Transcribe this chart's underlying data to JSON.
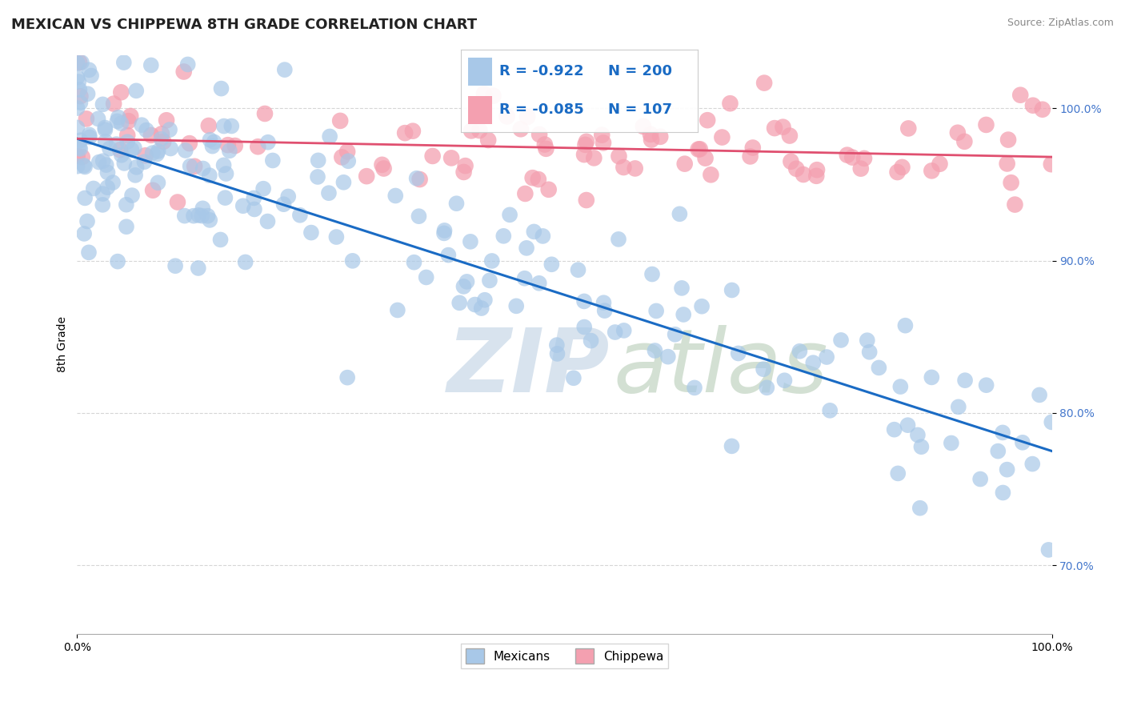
{
  "title": "MEXICAN VS CHIPPEWA 8TH GRADE CORRELATION CHART",
  "source_text": "Source: ZipAtlas.com",
  "ylabel": "8th Grade",
  "xlim": [
    0.0,
    1.0
  ],
  "ylim": [
    0.655,
    1.035
  ],
  "yticks": [
    0.7,
    0.8,
    0.9,
    1.0
  ],
  "ytick_labels": [
    "70.0%",
    "80.0%",
    "90.0%",
    "100.0%"
  ],
  "xticks": [
    0.0,
    1.0
  ],
  "xtick_labels": [
    "0.0%",
    "100.0%"
  ],
  "legend_r_mexican": "R = -0.922",
  "legend_n_mexican": "N = 200",
  "legend_r_chippewa": "R = -0.085",
  "legend_n_chippewa": "N = 107",
  "mexican_color": "#a8c8e8",
  "chippewa_color": "#f4a0b0",
  "trend_mexican_color": "#1a6bc4",
  "trend_chippewa_color": "#e05070",
  "watermark_zip": "ZIP",
  "watermark_atlas": "atlas",
  "watermark_color_zip": "#c8d8e8",
  "watermark_color_atlas": "#b0c8b0",
  "background_color": "#ffffff",
  "title_fontsize": 13,
  "axis_label_fontsize": 10,
  "tick_fontsize": 10,
  "legend_fontsize": 13,
  "grid_color": "#cccccc",
  "grid_style": "--",
  "grid_alpha": 0.8,
  "seed": 42,
  "mexican_trend_start_y": 0.98,
  "mexican_trend_end_y": 0.775,
  "chippewa_trend_start_y": 0.98,
  "chippewa_trend_end_y": 0.968,
  "N_mex": 200,
  "N_chip": 107,
  "R_mex": -0.922,
  "R_chip": -0.085
}
